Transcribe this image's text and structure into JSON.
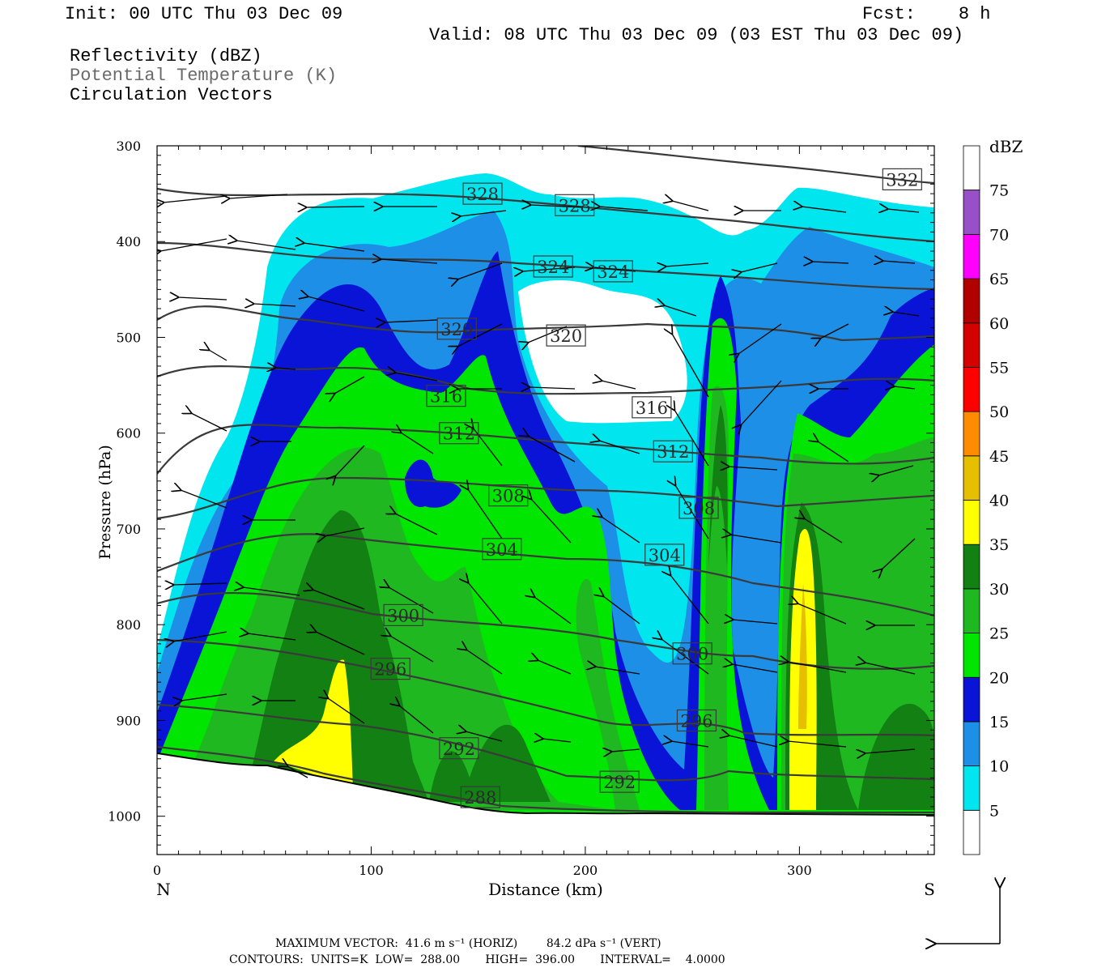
{
  "header": {
    "init": "Init: 00 UTC Thu 03 Dec 09",
    "fcst": "Fcst:    8 h",
    "valid": "Valid: 08 UTC Thu 03 Dec 09 (03 EST Thu 03 Dec 09)"
  },
  "legend": {
    "field1": "Reflectivity (dBZ)",
    "field2": "Potential Temperature (K)",
    "field3": "Circulation Vectors"
  },
  "footer": {
    "max_vector": "MAXIMUM VECTOR:  41.6 m s⁻¹ (HORIZ)        84.2 dPa s⁻¹ (VERT)",
    "contours": "CONTOURS:  UNITS=K  LOW=  288.00       HIGH=  396.00       INTERVAL=    4.0000"
  },
  "chart_data": {
    "type": "heatmap",
    "title": "",
    "xlabel": "Distance (km)",
    "ylabel": "Pressure (hPa)",
    "xlim": [
      0,
      363
    ],
    "ylim": [
      1040,
      300
    ],
    "x_ticks": [
      0,
      100,
      200,
      300
    ],
    "y_ticks": [
      300,
      400,
      500,
      600,
      700,
      800,
      900,
      1000
    ],
    "x_end_labels": {
      "left": "N",
      "right": "S"
    },
    "colorbar": {
      "unit_label": "dBZ",
      "levels": [
        5,
        10,
        15,
        20,
        25,
        30,
        35,
        40,
        45,
        50,
        55,
        60,
        65,
        70,
        75
      ],
      "colors": [
        "#ffffff",
        "#00e5ee",
        "#1e8fe6",
        "#0a14d6",
        "#00e600",
        "#20b820",
        "#128012",
        "#ffff00",
        "#e6bf00",
        "#ff8c00",
        "#ff0000",
        "#d40000",
        "#b00000",
        "#ff00ff",
        "#9850c8"
      ]
    },
    "theta_contours_K": [
      288,
      292,
      296,
      300,
      304,
      308,
      312,
      316,
      320,
      324,
      328,
      332
    ],
    "theta_labels": [
      {
        "x": 152,
        "p": 350,
        "text": "328"
      },
      {
        "x": 195,
        "p": 362,
        "text": "328"
      },
      {
        "x": 348,
        "p": 335,
        "text": "332"
      },
      {
        "x": 185,
        "p": 426,
        "text": "324"
      },
      {
        "x": 213,
        "p": 431,
        "text": "324"
      },
      {
        "x": 140,
        "p": 491,
        "text": "320"
      },
      {
        "x": 191,
        "p": 498,
        "text": "320"
      },
      {
        "x": 135,
        "p": 561,
        "text": "316"
      },
      {
        "x": 231,
        "p": 573,
        "text": "316"
      },
      {
        "x": 141,
        "p": 600,
        "text": "312"
      },
      {
        "x": 241,
        "p": 619,
        "text": "312"
      },
      {
        "x": 164,
        "p": 665,
        "text": "308"
      },
      {
        "x": 253,
        "p": 678,
        "text": "308"
      },
      {
        "x": 161,
        "p": 721,
        "text": "304"
      },
      {
        "x": 237,
        "p": 727,
        "text": "304"
      },
      {
        "x": 115,
        "p": 790,
        "text": "300"
      },
      {
        "x": 250,
        "p": 830,
        "text": "300"
      },
      {
        "x": 109,
        "p": 846,
        "text": "296"
      },
      {
        "x": 252,
        "p": 900,
        "text": "296"
      },
      {
        "x": 141,
        "p": 929,
        "text": "292"
      },
      {
        "x": 216,
        "p": 964,
        "text": "292"
      },
      {
        "x": 151,
        "p": 980,
        "text": "288"
      }
    ]
  }
}
